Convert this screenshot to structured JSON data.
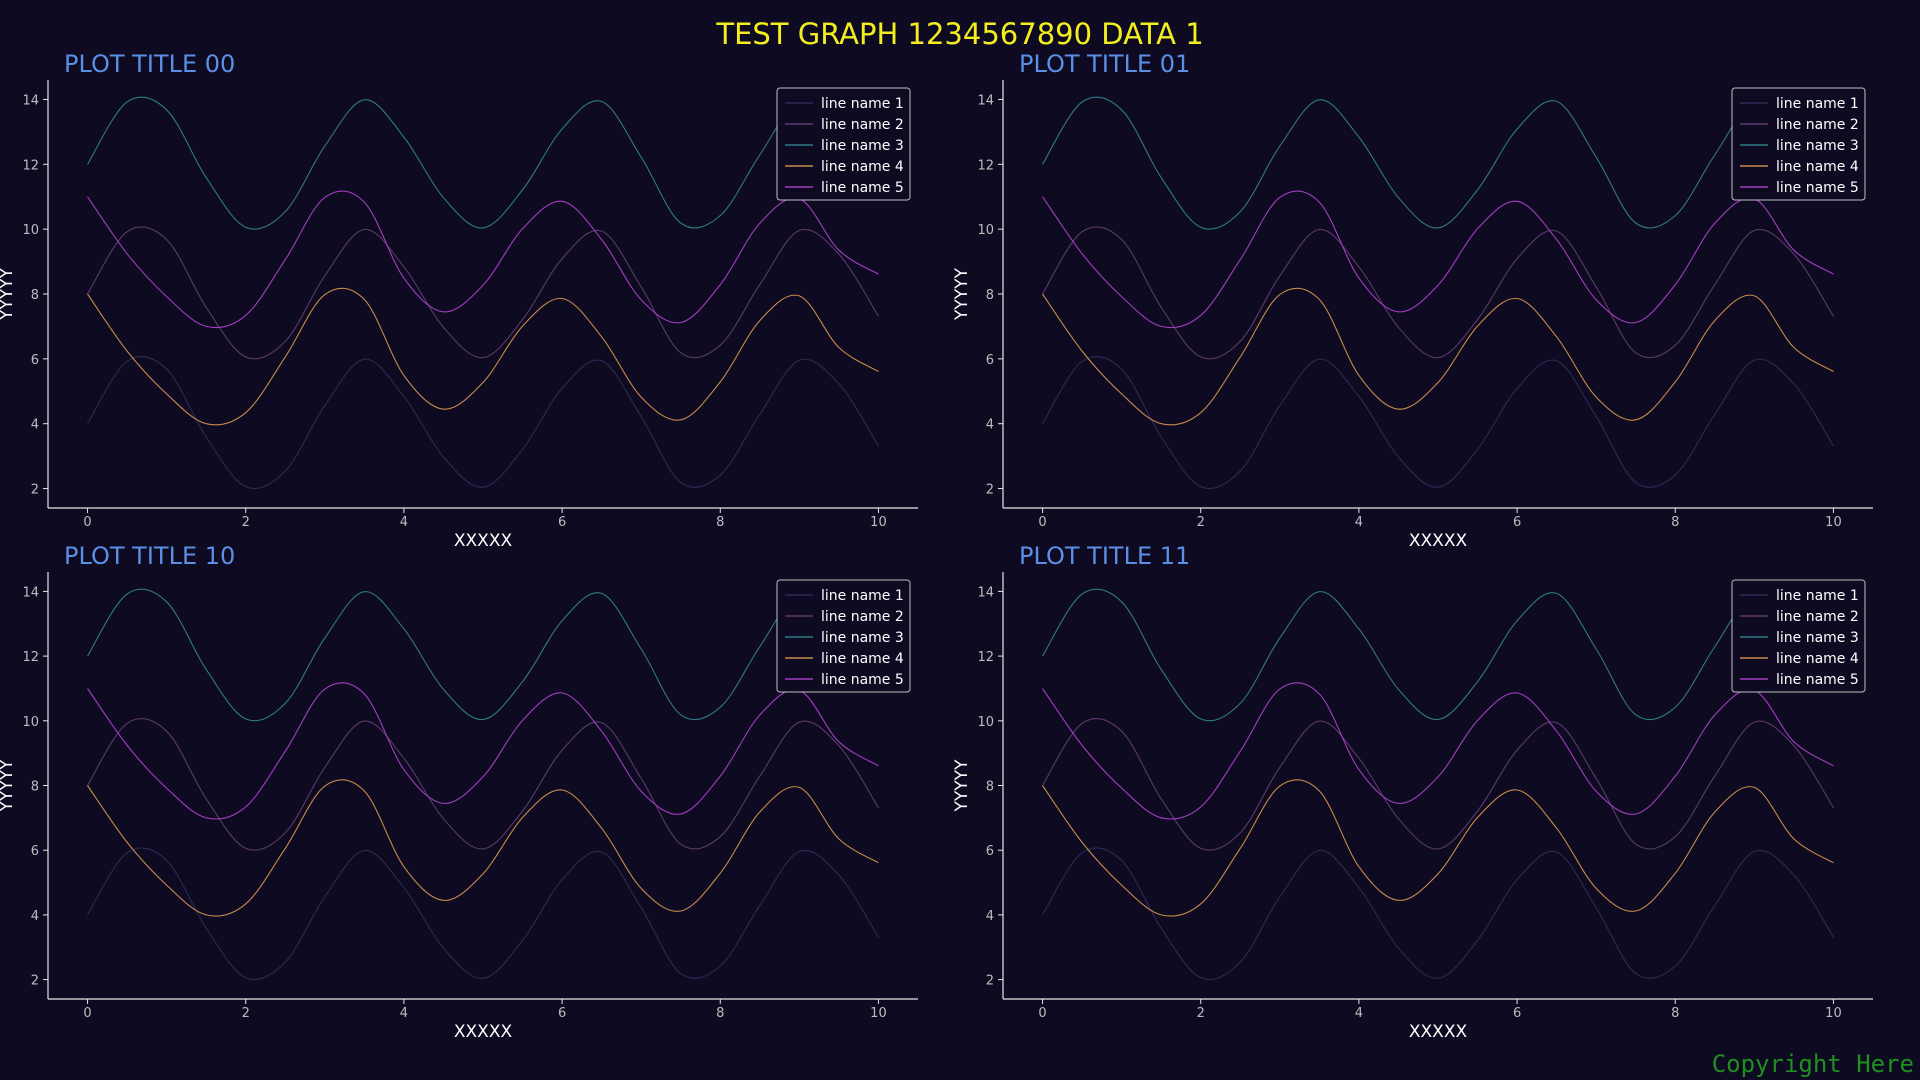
{
  "figure": {
    "title": "TEST GRAPH 1234567890 DATA 1",
    "copyright": "Copyright Here",
    "background": "#0e0a22",
    "title_color": "#f2ee1f",
    "subplot_title_color": "#5b8fe6",
    "axis_color": "#e6e6e6",
    "tick_label_color": "#bdbdbd"
  },
  "chart_data": [
    {
      "type": "line",
      "title": "PLOT TITLE 00",
      "xlabel": "XXXXX",
      "ylabel": "YYYYY",
      "xlim": [
        -0.5,
        10.5
      ],
      "ylim": [
        1.4,
        14.6
      ],
      "xticks": [
        0,
        2,
        4,
        6,
        8,
        10
      ],
      "yticks": [
        2,
        4,
        6,
        8,
        10,
        12,
        14
      ],
      "grid": false,
      "legend": "top-right",
      "x": [
        0,
        0.5,
        1,
        1.5,
        2,
        2.5,
        3,
        3.5,
        4,
        4.5,
        5,
        5.5,
        6,
        6.5,
        7,
        7.5,
        8,
        8.5,
        9,
        9.5,
        10
      ],
      "series": [
        {
          "name": "line name 1",
          "color": "#2b2c54",
          "values": [
            4.0,
            5.92,
            5.68,
            3.59,
            2.06,
            2.54,
            4.56,
            5.99,
            4.84,
            2.97,
            2.04,
            3.21,
            5.09,
            5.94,
            4.22,
            2.19,
            2.42,
            4.29,
            5.96,
            5.23,
            3.31
          ]
        },
        {
          "name": "line name 2",
          "color": "#5b3a6a",
          "values": [
            8.0,
            9.92,
            9.68,
            7.59,
            6.06,
            6.54,
            8.56,
            9.99,
            8.84,
            6.97,
            6.04,
            7.21,
            9.09,
            9.94,
            8.22,
            6.19,
            6.42,
            8.29,
            9.96,
            9.23,
            7.31
          ]
        },
        {
          "name": "line name 3",
          "color": "#2e7a86",
          "values": [
            12.0,
            13.92,
            13.68,
            11.59,
            10.06,
            10.54,
            12.56,
            13.99,
            12.84,
            10.97,
            10.04,
            11.21,
            13.09,
            13.94,
            12.22,
            10.19,
            10.42,
            12.29,
            13.96,
            13.23,
            11.31
          ]
        },
        {
          "name": "line name 4",
          "color": "#c88a4a",
          "values": [
            8.0,
            6.24,
            4.92,
            4.0,
            4.34,
            6.06,
            7.98,
            7.83,
            5.49,
            4.45,
            5.27,
            7.01,
            7.86,
            6.68,
            4.82,
            4.12,
            5.29,
            7.18,
            7.94,
            6.35,
            5.61
          ]
        },
        {
          "name": "line name 5",
          "color": "#a23ec0",
          "values": [
            11.0,
            9.24,
            7.92,
            7.0,
            7.34,
            9.06,
            10.98,
            10.83,
            8.49,
            7.45,
            8.27,
            10.01,
            10.86,
            9.68,
            7.82,
            7.12,
            8.29,
            10.18,
            10.94,
            9.35,
            8.61
          ]
        }
      ]
    },
    {
      "type": "line",
      "title": "PLOT TITLE 01",
      "xlabel": "XXXXX",
      "ylabel": "YYYYY",
      "xlim": [
        -0.5,
        10.5
      ],
      "ylim": [
        1.4,
        14.6
      ],
      "xticks": [
        0,
        2,
        4,
        6,
        8,
        10
      ],
      "yticks": [
        2,
        4,
        6,
        8,
        10,
        12,
        14
      ],
      "grid": false,
      "legend": "top-right",
      "x": [
        0,
        0.5,
        1,
        1.5,
        2,
        2.5,
        3,
        3.5,
        4,
        4.5,
        5,
        5.5,
        6,
        6.5,
        7,
        7.5,
        8,
        8.5,
        9,
        9.5,
        10
      ],
      "series": [
        {
          "name": "line name 1",
          "color": "#2b2c54",
          "values": [
            4.0,
            5.92,
            5.68,
            3.59,
            2.06,
            2.54,
            4.56,
            5.99,
            4.84,
            2.97,
            2.04,
            3.21,
            5.09,
            5.94,
            4.22,
            2.19,
            2.42,
            4.29,
            5.96,
            5.23,
            3.31
          ]
        },
        {
          "name": "line name 2",
          "color": "#5b3a6a",
          "values": [
            8.0,
            9.92,
            9.68,
            7.59,
            6.06,
            6.54,
            8.56,
            9.99,
            8.84,
            6.97,
            6.04,
            7.21,
            9.09,
            9.94,
            8.22,
            6.19,
            6.42,
            8.29,
            9.96,
            9.23,
            7.31
          ]
        },
        {
          "name": "line name 3",
          "color": "#2e7a86",
          "values": [
            12.0,
            13.92,
            13.68,
            11.59,
            10.06,
            10.54,
            12.56,
            13.99,
            12.84,
            10.97,
            10.04,
            11.21,
            13.09,
            13.94,
            12.22,
            10.19,
            10.42,
            12.29,
            13.96,
            13.23,
            11.31
          ]
        },
        {
          "name": "line name 4",
          "color": "#c88a4a",
          "values": [
            8.0,
            6.24,
            4.92,
            4.0,
            4.34,
            6.06,
            7.98,
            7.83,
            5.49,
            4.45,
            5.27,
            7.01,
            7.86,
            6.68,
            4.82,
            4.12,
            5.29,
            7.18,
            7.94,
            6.35,
            5.61
          ]
        },
        {
          "name": "line name 5",
          "color": "#a23ec0",
          "values": [
            11.0,
            9.24,
            7.92,
            7.0,
            7.34,
            9.06,
            10.98,
            10.83,
            8.49,
            7.45,
            8.27,
            10.01,
            10.86,
            9.68,
            7.82,
            7.12,
            8.29,
            10.18,
            10.94,
            9.35,
            8.61
          ]
        }
      ]
    },
    {
      "type": "line",
      "title": "PLOT TITLE 10",
      "xlabel": "XXXXX",
      "ylabel": "YYYYY",
      "xlim": [
        -0.5,
        10.5
      ],
      "ylim": [
        1.4,
        14.6
      ],
      "xticks": [
        0,
        2,
        4,
        6,
        8,
        10
      ],
      "yticks": [
        2,
        4,
        6,
        8,
        10,
        12,
        14
      ],
      "grid": false,
      "legend": "top-right",
      "x": [
        0,
        0.5,
        1,
        1.5,
        2,
        2.5,
        3,
        3.5,
        4,
        4.5,
        5,
        5.5,
        6,
        6.5,
        7,
        7.5,
        8,
        8.5,
        9,
        9.5,
        10
      ],
      "series": [
        {
          "name": "line name 1",
          "color": "#2b2c54",
          "values": [
            4.0,
            5.92,
            5.68,
            3.59,
            2.06,
            2.54,
            4.56,
            5.99,
            4.84,
            2.97,
            2.04,
            3.21,
            5.09,
            5.94,
            4.22,
            2.19,
            2.42,
            4.29,
            5.96,
            5.23,
            3.31
          ]
        },
        {
          "name": "line name 2",
          "color": "#5b3a6a",
          "values": [
            8.0,
            9.92,
            9.68,
            7.59,
            6.06,
            6.54,
            8.56,
            9.99,
            8.84,
            6.97,
            6.04,
            7.21,
            9.09,
            9.94,
            8.22,
            6.19,
            6.42,
            8.29,
            9.96,
            9.23,
            7.31
          ]
        },
        {
          "name": "line name 3",
          "color": "#2e7a86",
          "values": [
            12.0,
            13.92,
            13.68,
            11.59,
            10.06,
            10.54,
            12.56,
            13.99,
            12.84,
            10.97,
            10.04,
            11.21,
            13.09,
            13.94,
            12.22,
            10.19,
            10.42,
            12.29,
            13.96,
            13.23,
            11.31
          ]
        },
        {
          "name": "line name 4",
          "color": "#c88a4a",
          "values": [
            8.0,
            6.24,
            4.92,
            4.0,
            4.34,
            6.06,
            7.98,
            7.83,
            5.49,
            4.45,
            5.27,
            7.01,
            7.86,
            6.68,
            4.82,
            4.12,
            5.29,
            7.18,
            7.94,
            6.35,
            5.61
          ]
        },
        {
          "name": "line name 5",
          "color": "#a23ec0",
          "values": [
            11.0,
            9.24,
            7.92,
            7.0,
            7.34,
            9.06,
            10.98,
            10.83,
            8.49,
            7.45,
            8.27,
            10.01,
            10.86,
            9.68,
            7.82,
            7.12,
            8.29,
            10.18,
            10.94,
            9.35,
            8.61
          ]
        }
      ]
    },
    {
      "type": "line",
      "title": "PLOT TITLE 11",
      "xlabel": "XXXXX",
      "ylabel": "YYYYY",
      "xlim": [
        -0.5,
        10.5
      ],
      "ylim": [
        1.4,
        14.6
      ],
      "xticks": [
        0,
        2,
        4,
        6,
        8,
        10
      ],
      "yticks": [
        2,
        4,
        6,
        8,
        10,
        12,
        14
      ],
      "grid": false,
      "legend": "top-right",
      "x": [
        0,
        0.5,
        1,
        1.5,
        2,
        2.5,
        3,
        3.5,
        4,
        4.5,
        5,
        5.5,
        6,
        6.5,
        7,
        7.5,
        8,
        8.5,
        9,
        9.5,
        10
      ],
      "series": [
        {
          "name": "line name 1",
          "color": "#2b2c54",
          "values": [
            4.0,
            5.92,
            5.68,
            3.59,
            2.06,
            2.54,
            4.56,
            5.99,
            4.84,
            2.97,
            2.04,
            3.21,
            5.09,
            5.94,
            4.22,
            2.19,
            2.42,
            4.29,
            5.96,
            5.23,
            3.31
          ]
        },
        {
          "name": "line name 2",
          "color": "#5b3a6a",
          "values": [
            8.0,
            9.92,
            9.68,
            7.59,
            6.06,
            6.54,
            8.56,
            9.99,
            8.84,
            6.97,
            6.04,
            7.21,
            9.09,
            9.94,
            8.22,
            6.19,
            6.42,
            8.29,
            9.96,
            9.23,
            7.31
          ]
        },
        {
          "name": "line name 3",
          "color": "#2e7a86",
          "values": [
            12.0,
            13.92,
            13.68,
            11.59,
            10.06,
            10.54,
            12.56,
            13.99,
            12.84,
            10.97,
            10.04,
            11.21,
            13.09,
            13.94,
            12.22,
            10.19,
            10.42,
            12.29,
            13.96,
            13.23,
            11.31
          ]
        },
        {
          "name": "line name 4",
          "color": "#c88a4a",
          "values": [
            8.0,
            6.24,
            4.92,
            4.0,
            4.34,
            6.06,
            7.98,
            7.83,
            5.49,
            4.45,
            5.27,
            7.01,
            7.86,
            6.68,
            4.82,
            4.12,
            5.29,
            7.18,
            7.94,
            6.35,
            5.61
          ]
        },
        {
          "name": "line name 5",
          "color": "#a23ec0",
          "values": [
            11.0,
            9.24,
            7.92,
            7.0,
            7.34,
            9.06,
            10.98,
            10.83,
            8.49,
            7.45,
            8.27,
            10.01,
            10.86,
            9.68,
            7.82,
            7.12,
            8.29,
            10.18,
            10.94,
            9.35,
            8.61
          ]
        }
      ]
    }
  ]
}
